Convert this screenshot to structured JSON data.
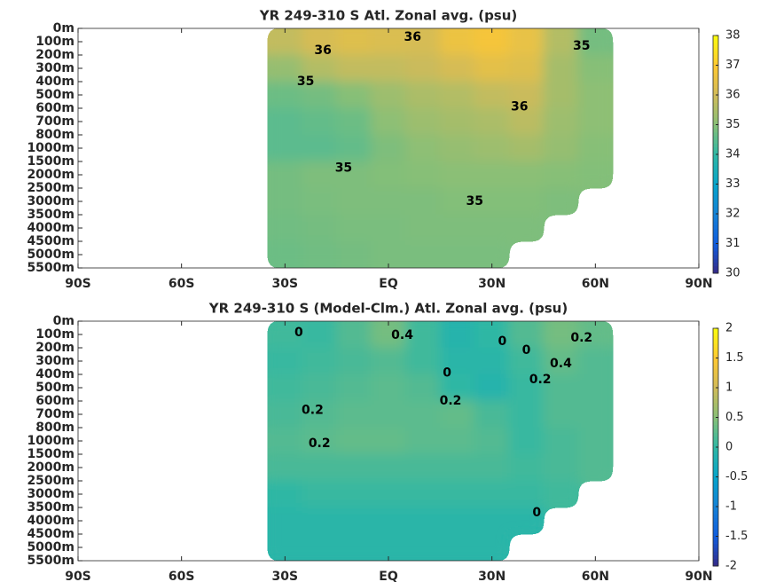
{
  "chart_data": [
    {
      "type": "heatmap",
      "title": "YR 249-310 S Atl. Zonal avg. (psu)",
      "xlim": [
        -90,
        90
      ],
      "xticks": [
        {
          "value": -90,
          "label": "90S"
        },
        {
          "value": -60,
          "label": "60S"
        },
        {
          "value": -30,
          "label": "30S"
        },
        {
          "value": 0,
          "label": "EQ"
        },
        {
          "value": 30,
          "label": "30N"
        },
        {
          "value": 60,
          "label": "60N"
        },
        {
          "value": 90,
          "label": "90N"
        }
      ],
      "ylim": [
        0,
        5500
      ],
      "yticks": [
        {
          "value": 0,
          "label": "0m"
        },
        {
          "value": 100,
          "label": "100m"
        },
        {
          "value": 200,
          "label": "200m"
        },
        {
          "value": 300,
          "label": "300m"
        },
        {
          "value": 400,
          "label": "400m"
        },
        {
          "value": 500,
          "label": "500m"
        },
        {
          "value": 600,
          "label": "600m"
        },
        {
          "value": 700,
          "label": "700m"
        },
        {
          "value": 800,
          "label": "800m"
        },
        {
          "value": 1000,
          "label": "1000m"
        },
        {
          "value": 1500,
          "label": "1500m"
        },
        {
          "value": 2000,
          "label": "2000m"
        },
        {
          "value": 2500,
          "label": "2500m"
        },
        {
          "value": 3000,
          "label": "3000m"
        },
        {
          "value": 3500,
          "label": "3500m"
        },
        {
          "value": 4000,
          "label": "4000m"
        },
        {
          "value": 4500,
          "label": "4500m"
        },
        {
          "value": 5000,
          "label": "5000m"
        },
        {
          "value": 5500,
          "label": "5500m"
        }
      ],
      "x_edges": [
        -35,
        -25,
        -15,
        -5,
        5,
        15,
        25,
        35,
        45,
        55,
        65
      ],
      "y_edges": [
        0,
        200,
        400,
        600,
        800,
        1500,
        2500,
        3500,
        4500,
        5500
      ],
      "z": [
        [
          35.8,
          36.1,
          36.3,
          36.2,
          36.1,
          36.6,
          36.8,
          36.5,
          35.6,
          34.8
        ],
        [
          35.2,
          35.6,
          35.8,
          35.8,
          35.9,
          36.1,
          36.4,
          36.3,
          35.4,
          35.0
        ],
        [
          34.7,
          34.8,
          35.0,
          35.3,
          35.5,
          35.6,
          35.8,
          35.9,
          35.4,
          35.1
        ],
        [
          34.5,
          34.6,
          34.7,
          35.1,
          35.3,
          35.4,
          35.5,
          35.7,
          35.3,
          35.1
        ],
        [
          34.5,
          34.5,
          34.6,
          34.9,
          35.1,
          35.2,
          35.3,
          35.4,
          35.2,
          35.0
        ],
        [
          34.8,
          34.9,
          34.9,
          34.95,
          35.0,
          35.05,
          35.05,
          35.05,
          35.0,
          34.95
        ],
        [
          34.8,
          34.85,
          34.9,
          34.9,
          34.9,
          34.95,
          34.95,
          34.95,
          34.9,
          null
        ],
        [
          34.75,
          34.8,
          34.85,
          34.85,
          34.9,
          34.9,
          34.9,
          34.9,
          null,
          null
        ],
        [
          34.7,
          34.75,
          34.8,
          34.85,
          34.85,
          34.85,
          34.85,
          null,
          null,
          null
        ]
      ],
      "clim": [
        30,
        38
      ],
      "cticks": [
        30,
        31,
        32,
        33,
        34,
        35,
        36,
        37,
        38
      ],
      "contour_labels": [
        {
          "value": 36,
          "lat": -19,
          "depth": 167
        },
        {
          "value": 36,
          "lat": 7,
          "depth": 67
        },
        {
          "value": 35,
          "lat": 56,
          "depth": 133
        },
        {
          "value": 35,
          "lat": -24,
          "depth": 400
        },
        {
          "value": 36,
          "lat": 38,
          "depth": 590
        },
        {
          "value": 35,
          "lat": -13,
          "depth": 1750
        },
        {
          "value": 35,
          "lat": 25,
          "depth": 3000
        }
      ]
    },
    {
      "type": "heatmap",
      "title": "YR 249-310 S (Model-Clm.) Atl. Zonal avg. (psu)",
      "xlim": [
        -90,
        90
      ],
      "xticks": [
        {
          "value": -90,
          "label": "90S"
        },
        {
          "value": -60,
          "label": "60S"
        },
        {
          "value": -30,
          "label": "30S"
        },
        {
          "value": 0,
          "label": "EQ"
        },
        {
          "value": 30,
          "label": "30N"
        },
        {
          "value": 60,
          "label": "60N"
        },
        {
          "value": 90,
          "label": "90N"
        }
      ],
      "ylim": [
        0,
        5500
      ],
      "yticks": [
        {
          "value": 0,
          "label": "0m"
        },
        {
          "value": 100,
          "label": "100m"
        },
        {
          "value": 200,
          "label": "200m"
        },
        {
          "value": 300,
          "label": "300m"
        },
        {
          "value": 400,
          "label": "400m"
        },
        {
          "value": 500,
          "label": "500m"
        },
        {
          "value": 600,
          "label": "600m"
        },
        {
          "value": 700,
          "label": "700m"
        },
        {
          "value": 800,
          "label": "800m"
        },
        {
          "value": 1000,
          "label": "1000m"
        },
        {
          "value": 1500,
          "label": "1500m"
        },
        {
          "value": 2000,
          "label": "2000m"
        },
        {
          "value": 2500,
          "label": "2500m"
        },
        {
          "value": 3000,
          "label": "3000m"
        },
        {
          "value": 3500,
          "label": "3500m"
        },
        {
          "value": 4000,
          "label": "4000m"
        },
        {
          "value": 4500,
          "label": "4500m"
        },
        {
          "value": 5000,
          "label": "5000m"
        },
        {
          "value": 5500,
          "label": "5500m"
        }
      ],
      "x_edges": [
        -35,
        -25,
        -15,
        -5,
        5,
        15,
        25,
        35,
        45,
        55,
        65
      ],
      "y_edges": [
        0,
        200,
        400,
        600,
        800,
        1500,
        2500,
        3500,
        4500,
        5500
      ],
      "z": [
        [
          0.1,
          0.05,
          0.2,
          0.4,
          0.1,
          -0.1,
          0.0,
          0.2,
          0.4,
          0.3
        ],
        [
          0.05,
          0.1,
          0.15,
          0.2,
          0.1,
          -0.05,
          -0.05,
          0.1,
          0.3,
          0.2
        ],
        [
          0.1,
          0.15,
          0.2,
          0.25,
          0.2,
          0.0,
          -0.1,
          0.05,
          0.2,
          0.2
        ],
        [
          0.15,
          0.2,
          0.25,
          0.25,
          0.25,
          0.3,
          0.15,
          0.05,
          0.2,
          0.2
        ],
        [
          0.2,
          0.25,
          0.3,
          0.3,
          0.25,
          0.25,
          0.2,
          0.05,
          0.15,
          0.2
        ],
        [
          0.15,
          0.15,
          0.15,
          0.15,
          0.15,
          0.15,
          0.15,
          0.1,
          0.15,
          0.2
        ],
        [
          0.0,
          0.05,
          0.05,
          0.05,
          0.05,
          0.05,
          0.05,
          0.05,
          0.1,
          null
        ],
        [
          -0.05,
          -0.05,
          -0.05,
          -0.05,
          -0.05,
          -0.05,
          -0.05,
          -0.05,
          null,
          null
        ],
        [
          -0.05,
          -0.05,
          -0.05,
          -0.05,
          -0.05,
          -0.05,
          -0.05,
          null,
          null,
          null
        ]
      ],
      "clim": [
        -2,
        2
      ],
      "cticks": [
        -2,
        -1.5,
        -1,
        -0.5,
        0,
        0.5,
        1,
        1.5,
        2
      ],
      "contour_labels": [
        {
          "value": 0,
          "lat": -26,
          "depth": 87
        },
        {
          "value": 0.4,
          "lat": 4,
          "depth": 107
        },
        {
          "value": 0,
          "lat": 33,
          "depth": 153
        },
        {
          "value": 0.2,
          "lat": 56,
          "depth": 127
        },
        {
          "value": 0,
          "lat": 40,
          "depth": 220
        },
        {
          "value": 0.4,
          "lat": 50,
          "depth": 320
        },
        {
          "value": 0,
          "lat": 17,
          "depth": 390
        },
        {
          "value": 0.2,
          "lat": 44,
          "depth": 440
        },
        {
          "value": 0.2,
          "lat": -22,
          "depth": 670
        },
        {
          "value": 0.2,
          "lat": 18,
          "depth": 600
        },
        {
          "value": 0.2,
          "lat": -20,
          "depth": 1100
        },
        {
          "value": 0,
          "lat": 43,
          "depth": 3700
        }
      ]
    }
  ]
}
